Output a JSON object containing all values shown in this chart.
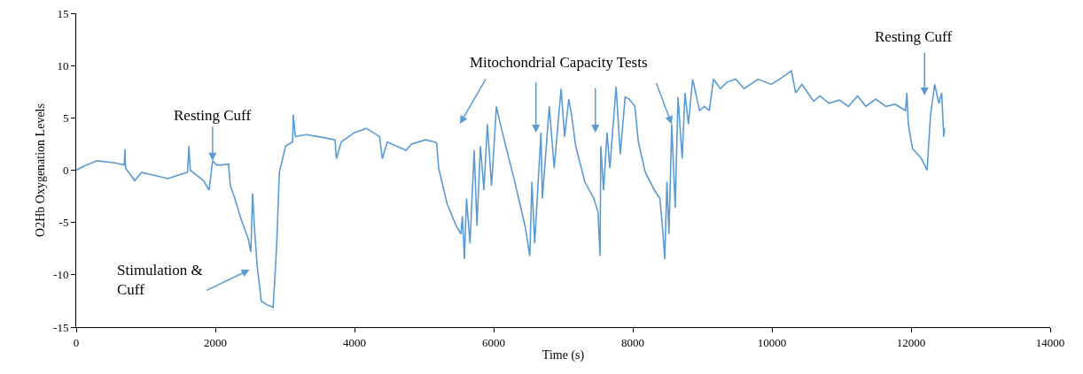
{
  "chart_data": {
    "type": "line",
    "xlabel": "Time (s)",
    "ylabel": "O2Hb Oxygenation Levels",
    "x": [
      0,
      115,
      300,
      560,
      690,
      700,
      710,
      840,
      940,
      1130,
      1320,
      1450,
      1600,
      1620,
      1640,
      1830,
      1910,
      1960,
      2020,
      2090,
      2190,
      2215,
      2280,
      2370,
      2470,
      2510,
      2535,
      2560,
      2600,
      2660,
      2750,
      2830,
      2880,
      2920,
      3010,
      3110,
      3120,
      3150,
      3300,
      3490,
      3720,
      3740,
      3810,
      4000,
      4170,
      4360,
      4400,
      4470,
      4740,
      4820,
      5020,
      5150,
      5180,
      5210,
      5270,
      5330,
      5460,
      5530,
      5550,
      5580,
      5610,
      5660,
      5720,
      5760,
      5810,
      5860,
      5910,
      5970,
      6040,
      6100,
      6190,
      6270,
      6360,
      6450,
      6480,
      6520,
      6550,
      6590,
      6680,
      6700,
      6800,
      6870,
      6970,
      7020,
      7080,
      7120,
      7180,
      7310,
      7440,
      7500,
      7530,
      7540,
      7580,
      7630,
      7670,
      7760,
      7820,
      7890,
      7950,
      8030,
      8080,
      8180,
      8310,
      8390,
      8430,
      8460,
      8490,
      8520,
      8560,
      8610,
      8650,
      8710,
      8750,
      8800,
      8860,
      8960,
      9030,
      9100,
      9160,
      9260,
      9350,
      9480,
      9600,
      9800,
      9990,
      10110,
      10280,
      10340,
      10430,
      10600,
      10690,
      10820,
      10970,
      11100,
      11230,
      11350,
      11490,
      11640,
      11770,
      11920,
      11940,
      11960,
      12020,
      12150,
      12230,
      12280,
      12340,
      12400,
      12440,
      12470,
      12480
    ],
    "series": [
      {
        "color": "#5b9bd5",
        "values": [
          0,
          0.4,
          0.9,
          0.7,
          0.5,
          2.0,
          0.2,
          -1.0,
          -0.2,
          -0.5,
          -0.8,
          -0.5,
          -0.2,
          2.3,
          0,
          -1.0,
          -1.9,
          0.9,
          0.5,
          0.5,
          0.6,
          -1.5,
          -2.7,
          -4.7,
          -6.5,
          -7.8,
          -2.2,
          -5.3,
          -9.1,
          -12.5,
          -12.9,
          -13.1,
          -7.4,
          -0.2,
          2.3,
          2.7,
          5.3,
          3.2,
          3.4,
          3.2,
          2.9,
          1.1,
          2.7,
          3.6,
          4.0,
          3.2,
          1.1,
          2.7,
          1.9,
          2.5,
          2.9,
          2.7,
          2.6,
          0.2,
          -1.5,
          -3.2,
          -5.3,
          -6.1,
          -4.4,
          -8.5,
          -2.7,
          -7.0,
          1.9,
          -5.3,
          2.3,
          -1.9,
          4.4,
          -1.5,
          6.1,
          4.3,
          1.9,
          -0.2,
          -2.7,
          -5.3,
          -6.5,
          -8.2,
          -1.1,
          -7.0,
          3.6,
          -2.7,
          6.1,
          0.2,
          7.8,
          3.2,
          6.8,
          5.3,
          2.3,
          -1.1,
          -2.7,
          -4.0,
          -8.2,
          2.3,
          -1.9,
          3.6,
          0.2,
          8.0,
          1.5,
          7.0,
          6.8,
          6.1,
          2.7,
          -0.2,
          -1.9,
          -2.7,
          -5.7,
          -8.5,
          -1.1,
          -6.1,
          4.4,
          -3.6,
          7.0,
          1.1,
          7.4,
          4.4,
          8.7,
          5.7,
          6.1,
          5.7,
          8.7,
          7.8,
          8.4,
          8.7,
          7.8,
          8.7,
          8.2,
          8.7,
          9.5,
          7.4,
          8.2,
          6.6,
          7.1,
          6.4,
          6.7,
          6.1,
          7.1,
          6.1,
          6.8,
          6.1,
          6.3,
          5.7,
          7.4,
          4.4,
          2.1,
          1.1,
          0,
          5.3,
          8.2,
          6.4,
          7.4,
          3.2,
          4.0
        ]
      }
    ],
    "xlim": [
      0,
      14000
    ],
    "xticks": [
      0,
      2000,
      4000,
      6000,
      8000,
      10000,
      12000,
      14000
    ],
    "ylim": [
      -15,
      15
    ],
    "yticks": [
      -15,
      -10,
      -5,
      0,
      5,
      10,
      15
    ],
    "grid": false,
    "marker": "none",
    "line_style": "solid",
    "annotations": [
      {
        "text": "Resting Cuff",
        "x": 1960,
        "y": 0.9
      },
      "Stimulation & Cuff",
      {
        "text": "Mitochondrial Capacity Tests",
        "x": 8560,
        "y": 4.4
      },
      "Resting Cuff"
    ]
  }
}
